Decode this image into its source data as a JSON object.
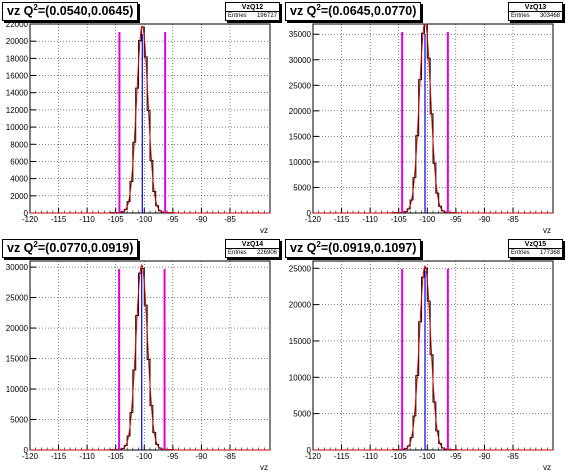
{
  "chart_data": [
    {
      "type": "bar",
      "variable": "vz",
      "title_prefix": "vz Q",
      "title_sup": "2",
      "title_suffix": "=(0.0540,0.0645)",
      "stats": {
        "name": "VzQ12",
        "entries_label": "Entries",
        "entries": "196727"
      },
      "xlabel": "vz",
      "xlim": [
        -120,
        -78
      ],
      "ylim": [
        0,
        22000
      ],
      "x_ticks": [
        -120,
        -115,
        -110,
        -105,
        -100,
        -95,
        -90,
        -85
      ],
      "y_ticks": [
        0,
        2000,
        4000,
        6000,
        8000,
        10000,
        12000,
        14000,
        16000,
        18000,
        20000,
        22000
      ],
      "peak": 21500,
      "mean": -100.35,
      "sigma": 1.0,
      "cut_lines": [
        -104.35,
        -96.35
      ],
      "center_line": -100.35
    },
    {
      "type": "bar",
      "variable": "vz",
      "title_prefix": "vz Q",
      "title_sup": "2",
      "title_suffix": "=(0.0645,0.0770)",
      "stats": {
        "name": "VzQ13",
        "entries_label": "Entries",
        "entries": "303468"
      },
      "xlabel": "vz",
      "xlim": [
        -120,
        -78
      ],
      "ylim": [
        0,
        37000
      ],
      "x_ticks": [
        -120,
        -115,
        -110,
        -105,
        -100,
        -95,
        -90,
        -85
      ],
      "y_ticks": [
        0,
        5000,
        10000,
        15000,
        20000,
        25000,
        30000,
        35000
      ],
      "peak": 37000,
      "mean": -100.4,
      "sigma": 1.0,
      "cut_lines": [
        -104.4,
        -96.4
      ],
      "center_line": -100.4
    },
    {
      "type": "bar",
      "variable": "vz",
      "title_prefix": "vz Q",
      "title_sup": "2",
      "title_suffix": "=(0.0770,0.0919)",
      "stats": {
        "name": "VzQ14",
        "entries_label": "Entries",
        "entries": "226906"
      },
      "xlabel": "vz",
      "xlim": [
        -120,
        -78
      ],
      "ylim": [
        0,
        31000
      ],
      "x_ticks": [
        -120,
        -115,
        -110,
        -105,
        -100,
        -95,
        -90,
        -85
      ],
      "y_ticks": [
        0,
        5000,
        10000,
        15000,
        20000,
        25000,
        30000
      ],
      "peak": 30000,
      "mean": -100.45,
      "sigma": 1.0,
      "cut_lines": [
        -104.4,
        -96.45
      ],
      "center_line": -100.45
    },
    {
      "type": "bar",
      "variable": "vz",
      "title_prefix": "vz Q",
      "title_sup": "2",
      "title_suffix": "=(0.0919,0.1097)",
      "stats": {
        "name": "VzQ15",
        "entries_label": "Entries",
        "entries": "177368"
      },
      "xlabel": "vz",
      "xlim": [
        -120,
        -78
      ],
      "ylim": [
        0,
        26000
      ],
      "x_ticks": [
        -120,
        -115,
        -110,
        -105,
        -100,
        -95,
        -90,
        -85
      ],
      "y_ticks": [
        0,
        5000,
        10000,
        15000,
        20000,
        25000
      ],
      "peak": 25000,
      "mean": -100.4,
      "sigma": 1.0,
      "cut_lines": [
        -104.4,
        -96.4
      ],
      "center_line": -100.4
    }
  ],
  "colors": {
    "histogram": "#000000",
    "fit": "#cc0000",
    "cut_lines": "#e000e0",
    "center_line": "#0000ee",
    "grid": "#000000"
  }
}
